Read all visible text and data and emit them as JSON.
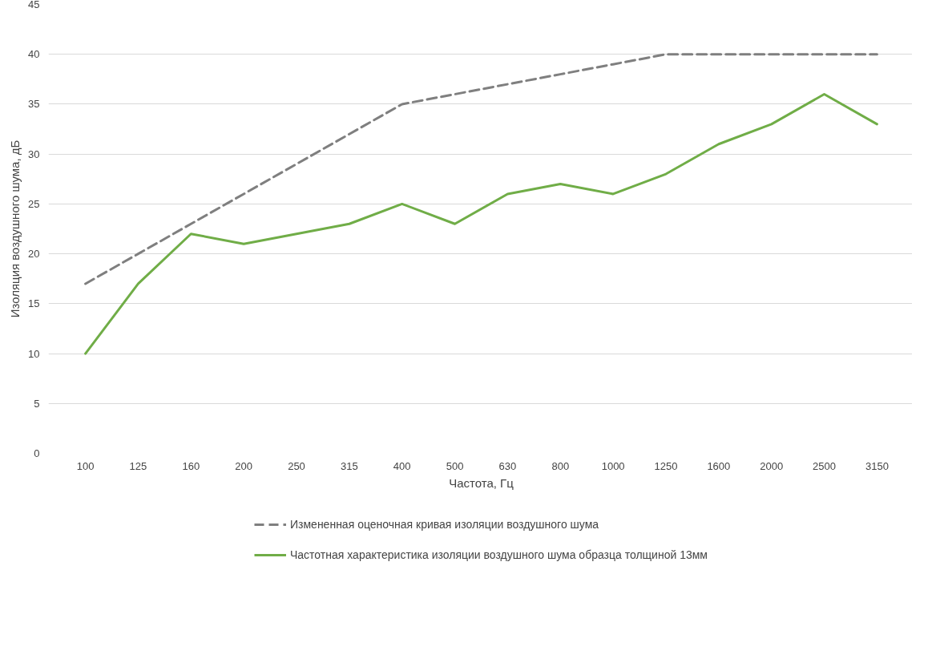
{
  "chart_data": {
    "type": "line",
    "xlabel": "Частота, Гц",
    "ylabel": "Изоляция воздушного шума, дБ",
    "categories": [
      "100",
      "125",
      "160",
      "200",
      "250",
      "315",
      "400",
      "500",
      "630",
      "800",
      "1000",
      "1250",
      "1600",
      "2000",
      "2500",
      "3150"
    ],
    "ylim": [
      0,
      45
    ],
    "yticks": [
      0,
      5,
      10,
      15,
      20,
      25,
      30,
      35,
      40,
      45
    ],
    "grid": "y",
    "legend": "bottom",
    "marker": "none",
    "series": [
      {
        "name": "Измененная оценочная кривая изоляции воздушного шума",
        "color": "#7f7f7f",
        "line_style": "dashed",
        "values": [
          17,
          20,
          23,
          26,
          29,
          32,
          35,
          36,
          37,
          38,
          39,
          40,
          40,
          40,
          40,
          40
        ]
      },
      {
        "name": "Частотная характеристика изоляции воздушного шума образца толщиной 13мм",
        "color": "#70ad47",
        "line_style": "solid",
        "values": [
          10,
          17,
          22,
          21,
          22,
          23,
          25,
          23,
          26,
          27,
          26,
          28,
          31,
          33,
          36,
          33
        ]
      }
    ]
  }
}
